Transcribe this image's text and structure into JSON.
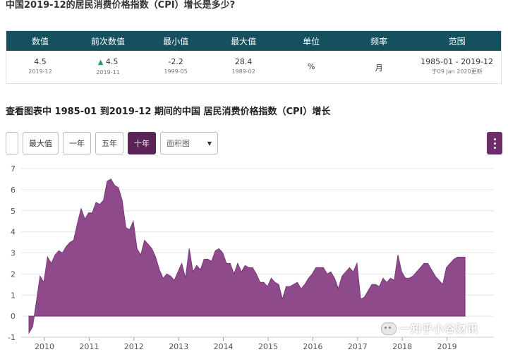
{
  "page_title": "中国2019-12的居民消费价格指数（CPI）增长是多少?",
  "stats": {
    "headers": [
      "数值",
      "前次数值",
      "最小值",
      "最大值",
      "单位",
      "频率",
      "范围"
    ],
    "value": {
      "main": "4.5",
      "sub": "2019-12"
    },
    "previous": {
      "arrow": "▲",
      "main": "4.5",
      "sub": "2019-11"
    },
    "min": {
      "main": "-2.2",
      "sub": "1999-05"
    },
    "max": {
      "main": "28.4",
      "sub": "1989-02"
    },
    "unit": "%",
    "frequency": "月",
    "range": {
      "main": "1985-01 - 2019-12",
      "sub": "于09 Jan 2020更新"
    }
  },
  "section_title": "查看图表中 1985-01 到2019-12 期间的中国 居民消费价格指数（CPI）增长",
  "toolbar": {
    "buttons": [
      "最大值",
      "一年",
      "五年",
      "十年"
    ],
    "active": "十年",
    "chart_type": "面积图"
  },
  "watermark": "一知乎小谷财讯",
  "colors": {
    "header_bg": "#14505e",
    "area": "#8f4a8c",
    "active_btn": "#5b2456",
    "up": "#1e9e6e"
  },
  "chart_data": {
    "type": "area",
    "title": "",
    "xlabel": "",
    "ylabel": "",
    "ylim": [
      -1,
      7
    ],
    "y_ticks": [
      -1,
      0,
      1,
      2,
      3,
      4,
      5,
      6,
      7
    ],
    "x_ticks": [
      "2010",
      "2011",
      "2012",
      "2013",
      "2014",
      "2015",
      "2016",
      "2017",
      "2018",
      "2019"
    ],
    "grid": true,
    "series": [
      {
        "x": [
          "2010-01",
          "2010-02",
          "2010-03",
          "2010-04",
          "2010-05",
          "2010-06",
          "2010-07",
          "2010-08",
          "2010-09",
          "2010-10",
          "2010-11",
          "2010-12",
          "2011-01",
          "2011-02",
          "2011-03",
          "2011-04",
          "2011-05",
          "2011-06",
          "2011-07",
          "2011-08",
          "2011-09",
          "2011-10",
          "2011-11",
          "2011-12",
          "2012-01",
          "2012-02",
          "2012-03",
          "2012-04",
          "2012-05",
          "2012-06",
          "2012-07",
          "2012-08",
          "2012-09",
          "2012-10",
          "2012-11",
          "2012-12",
          "2013-01",
          "2013-02",
          "2013-03",
          "2013-04",
          "2013-05",
          "2013-06",
          "2013-07",
          "2013-08",
          "2013-09",
          "2013-10",
          "2013-11",
          "2013-12",
          "2014-01",
          "2014-02",
          "2014-03",
          "2014-04",
          "2014-05",
          "2014-06",
          "2014-07",
          "2014-08",
          "2014-09",
          "2014-10",
          "2014-11",
          "2014-12",
          "2015-01",
          "2015-02",
          "2015-03",
          "2015-04",
          "2015-05",
          "2015-06",
          "2015-07",
          "2015-08",
          "2015-09",
          "2015-10",
          "2015-11",
          "2015-12",
          "2016-01",
          "2016-02",
          "2016-03",
          "2016-04",
          "2016-05",
          "2016-06",
          "2016-07",
          "2016-08",
          "2016-09",
          "2016-10",
          "2016-11",
          "2016-12",
          "2017-01",
          "2017-02",
          "2017-03",
          "2017-04",
          "2017-05",
          "2017-06",
          "2017-07",
          "2017-08",
          "2017-09",
          "2017-10",
          "2017-11",
          "2017-12",
          "2018-01",
          "2018-02",
          "2018-03",
          "2018-04",
          "2018-05",
          "2018-06",
          "2018-07",
          "2018-08",
          "2018-09",
          "2018-10",
          "2018-11",
          "2018-12",
          "2019-01",
          "2019-02",
          "2019-03",
          "2019-04",
          "2019-05",
          "2019-06",
          "2019-07",
          "2019-08",
          "2019-09",
          "2019-10"
        ],
        "values": [
          -0.8,
          -0.5,
          0.7,
          1.9,
          1.6,
          2.8,
          2.5,
          2.9,
          3.1,
          3.0,
          3.3,
          3.5,
          3.6,
          4.4,
          5.1,
          4.6,
          4.9,
          4.9,
          5.4,
          5.3,
          5.5,
          6.4,
          6.5,
          6.2,
          6.1,
          5.5,
          4.2,
          4.1,
          4.5,
          3.2,
          2.9,
          3.6,
          3.4,
          3.2,
          2.8,
          2.2,
          1.8,
          2.0,
          1.9,
          1.7,
          2.1,
          2.5,
          1.8,
          3.2,
          2.1,
          2.4,
          2.2,
          2.7,
          2.7,
          2.6,
          3.1,
          3.2,
          3.0,
          2.5,
          2.5,
          2.0,
          2.5,
          2.1,
          2.4,
          2.3,
          2.3,
          2.0,
          1.6,
          1.6,
          1.4,
          1.8,
          1.6,
          1.5,
          0.8,
          1.4,
          1.4,
          1.5,
          1.6,
          1.3,
          1.5,
          1.8,
          2.0,
          2.3,
          2.3,
          2.3,
          2.0,
          2.1,
          1.8,
          1.3,
          1.9,
          2.1,
          2.3,
          2.1,
          2.5,
          0.8,
          0.9,
          1.2,
          1.5,
          1.5,
          1.4,
          1.8,
          1.6,
          1.8,
          1.7,
          2.9,
          2.1,
          1.8,
          1.8,
          1.9,
          2.1,
          2.3,
          2.5,
          2.5,
          2.2,
          1.9,
          1.7,
          1.5,
          2.3,
          2.5,
          2.7,
          2.8,
          2.8,
          2.8
        ]
      }
    ]
  }
}
